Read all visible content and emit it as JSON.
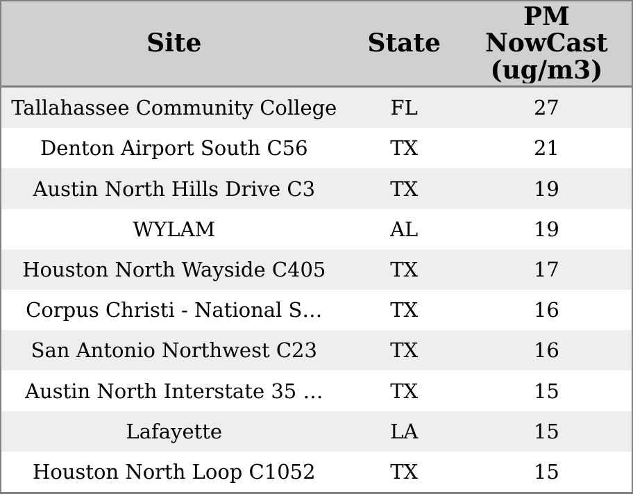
{
  "chart_data": {
    "type": "table",
    "title": "",
    "sort_order": "pm_nowcast descending",
    "columns": [
      {
        "key": "site",
        "label": "Site"
      },
      {
        "key": "state",
        "label": "State"
      },
      {
        "key": "pm_nowcast",
        "label": "PM NowCast (ug/m3)",
        "header_lines": [
          "PM",
          "NowCast",
          "(ug/m3)"
        ]
      }
    ],
    "rows": [
      {
        "site": "Tallahassee Community College",
        "state": "FL",
        "pm_nowcast": 27
      },
      {
        "site": "Denton Airport South C56",
        "state": "TX",
        "pm_nowcast": 21
      },
      {
        "site": "Austin North Hills Drive C3",
        "state": "TX",
        "pm_nowcast": 19
      },
      {
        "site": "WYLAM",
        "state": "AL",
        "pm_nowcast": 19
      },
      {
        "site": "Houston North Wayside C405",
        "state": "TX",
        "pm_nowcast": 17
      },
      {
        "site": "Corpus Christi - National S…",
        "state": "TX",
        "pm_nowcast": 16
      },
      {
        "site": "San Antonio Northwest C23",
        "state": "TX",
        "pm_nowcast": 16
      },
      {
        "site": "Austin North Interstate 35 …",
        "state": "TX",
        "pm_nowcast": 15
      },
      {
        "site": "Lafayette",
        "state": "LA",
        "pm_nowcast": 15
      },
      {
        "site": "Houston North Loop C1052",
        "state": "TX",
        "pm_nowcast": 15
      }
    ]
  },
  "colors": {
    "header_bg": "#d0d0d0",
    "row_alt_bg": "#eeeeee",
    "row_bg": "#ffffff",
    "border": "#808080",
    "text": "#000000"
  }
}
